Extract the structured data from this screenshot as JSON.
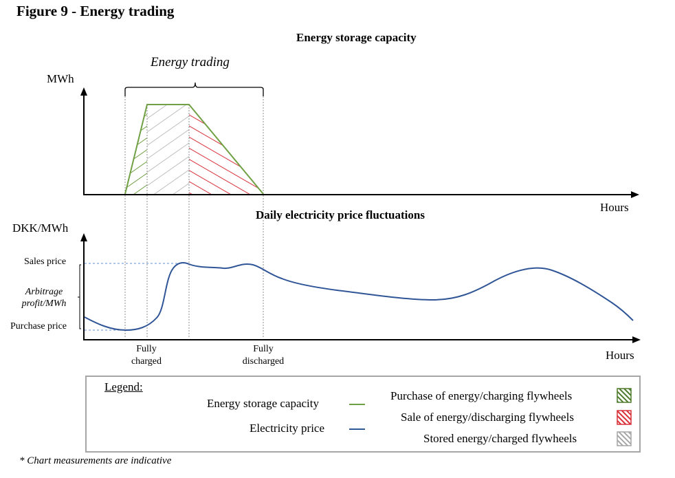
{
  "figure_title": "Figure 9 - Energy trading",
  "footnote": "* Chart measurements are indicative",
  "colors": {
    "capacity_line": "#70a044",
    "price_line": "#2f5597",
    "purchase_hatch": "#70a044",
    "sale_hatch": "#d9303a",
    "stored_hatch": "#bfbfbf",
    "guide_line": "#8e8e8e",
    "price_guide": "#5b8ed6"
  },
  "chart_data": [
    {
      "type": "area",
      "title": "Energy storage capacity",
      "ylabel": "MWh",
      "xlabel": "Hours",
      "annotation": "Energy trading",
      "series": [
        {
          "name": "Energy storage capacity",
          "x": [
            0,
            1,
            2,
            5
          ],
          "y": [
            0,
            1,
            1,
            0
          ]
        }
      ],
      "regions": [
        {
          "label": "Purchase of energy/charging flywheels",
          "x_from": 0,
          "x_to": 1,
          "hatch": "green"
        },
        {
          "label": "Stored energy/charged flywheels",
          "x_from": 1,
          "x_to": 2,
          "hatch": "grey"
        },
        {
          "label": "Sale of energy/discharging flywheels",
          "x_from": 2,
          "x_to": 5,
          "hatch": "red"
        }
      ]
    },
    {
      "type": "line",
      "title": "Daily electricity price fluctuations",
      "ylabel": "DKK/MWh",
      "xlabel": "Hours",
      "y_markers": {
        "sales": "Sales price",
        "arbitrage": "Arbitrage profit/MWh",
        "purchase": "Purchase price"
      },
      "x_markers": {
        "charged": "Fully charged",
        "discharged": "Fully discharged"
      },
      "series": [
        {
          "name": "Electricity price"
        }
      ]
    }
  ],
  "legend": {
    "title": "Legend:",
    "line_items": {
      "capacity": "Energy  storage capacity",
      "price": "Electricity price"
    },
    "hatch_items": {
      "purchase": "Purchase of energy/charging  flywheels",
      "sale": "Sale of energy/discharging  flywheels",
      "stored": "Stored energy/charged  flywheels"
    }
  }
}
